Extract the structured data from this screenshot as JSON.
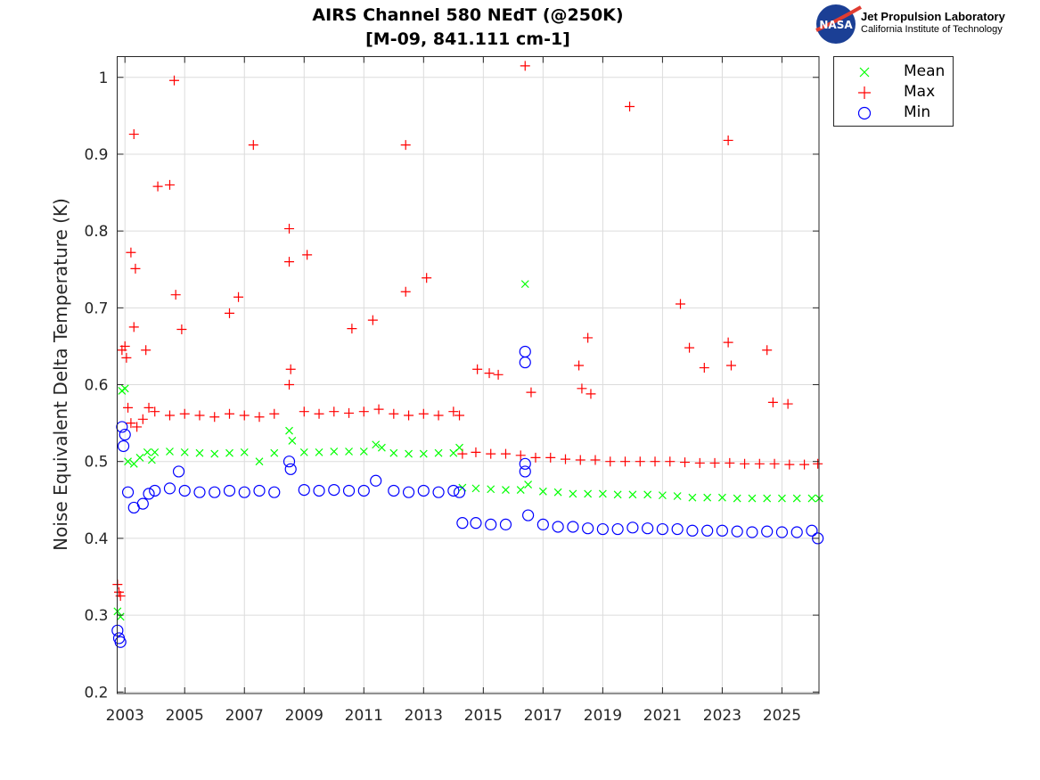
{
  "header": {
    "title_line1": "AIRS Channel 580 NEdT (@250K)",
    "title_line2": "[M-09, 841.111 cm-1]",
    "logo_text": "NASA",
    "org_name": "Jet Propulsion Laboratory",
    "org_subtitle": "California Institute of Technology"
  },
  "chart_data": {
    "type": "scatter",
    "title": "AIRS Channel 580 NEdT (@250K) [M-09, 841.111 cm-1]",
    "xlabel": "",
    "ylabel": "Noise Equivalent Delta Temperature (K)",
    "xlim": [
      2002.74,
      2026.24
    ],
    "ylim": [
      0.198,
      1.027
    ],
    "grid": true,
    "legend_position": "outside-top-right",
    "x_ticks": [
      "2003",
      "2005",
      "2007",
      "2009",
      "2011",
      "2013",
      "2015",
      "2017",
      "2019",
      "2021",
      "2023",
      "2025"
    ],
    "y_ticks": [
      "0.2",
      "0.3",
      "0.4",
      "0.5",
      "0.6",
      "0.7",
      "0.8",
      "0.9",
      "1"
    ],
    "series": [
      {
        "name": "Mean",
        "marker": "x",
        "color": "#00ff00",
        "points": [
          [
            2002.75,
            0.305
          ],
          [
            2002.85,
            0.298
          ],
          [
            2002.9,
            0.592
          ],
          [
            2003.0,
            0.595
          ],
          [
            2003.1,
            0.5
          ],
          [
            2003.3,
            0.497
          ],
          [
            2003.5,
            0.505
          ],
          [
            2003.75,
            0.512
          ],
          [
            2003.9,
            0.502
          ],
          [
            2004,
            0.512
          ],
          [
            2004.5,
            0.513
          ],
          [
            2005,
            0.512
          ],
          [
            2005.5,
            0.511
          ],
          [
            2006,
            0.51
          ],
          [
            2006.5,
            0.511
          ],
          [
            2007,
            0.512
          ],
          [
            2007.5,
            0.5
          ],
          [
            2008,
            0.511
          ],
          [
            2008.5,
            0.54
          ],
          [
            2008.6,
            0.527
          ],
          [
            2009,
            0.512
          ],
          [
            2009.5,
            0.512
          ],
          [
            2010,
            0.513
          ],
          [
            2010.5,
            0.513
          ],
          [
            2011,
            0.513
          ],
          [
            2011.4,
            0.522
          ],
          [
            2011.6,
            0.518
          ],
          [
            2012,
            0.511
          ],
          [
            2012.5,
            0.51
          ],
          [
            2013,
            0.51
          ],
          [
            2013.5,
            0.511
          ],
          [
            2014,
            0.511
          ],
          [
            2014.2,
            0.518
          ],
          [
            2014.3,
            0.466
          ],
          [
            2014.75,
            0.465
          ],
          [
            2015.25,
            0.464
          ],
          [
            2015.75,
            0.463
          ],
          [
            2016.25,
            0.463
          ],
          [
            2016.4,
            0.731
          ],
          [
            2016.5,
            0.47
          ],
          [
            2017,
            0.461
          ],
          [
            2017.5,
            0.46
          ],
          [
            2018,
            0.458
          ],
          [
            2018.5,
            0.458
          ],
          [
            2019,
            0.458
          ],
          [
            2019.5,
            0.457
          ],
          [
            2020,
            0.457
          ],
          [
            2020.5,
            0.457
          ],
          [
            2021,
            0.456
          ],
          [
            2021.5,
            0.455
          ],
          [
            2022,
            0.453
          ],
          [
            2022.5,
            0.453
          ],
          [
            2023,
            0.453
          ],
          [
            2023.5,
            0.452
          ],
          [
            2024,
            0.452
          ],
          [
            2024.5,
            0.452
          ],
          [
            2025,
            0.452
          ],
          [
            2025.5,
            0.452
          ],
          [
            2026,
            0.452
          ],
          [
            2026.25,
            0.452
          ]
        ]
      },
      {
        "name": "Max",
        "marker": "+",
        "color": "#ff0000",
        "points": [
          [
            2002.75,
            0.34
          ],
          [
            2002.8,
            0.33
          ],
          [
            2002.85,
            0.325
          ],
          [
            2002.9,
            0.645
          ],
          [
            2003.0,
            0.65
          ],
          [
            2003.05,
            0.635
          ],
          [
            2003.1,
            0.57
          ],
          [
            2003.2,
            0.55
          ],
          [
            2003.4,
            0.545
          ],
          [
            2003.6,
            0.555
          ],
          [
            2003.8,
            0.57
          ],
          [
            2004,
            0.565
          ],
          [
            2004.5,
            0.56
          ],
          [
            2005,
            0.562
          ],
          [
            2005.5,
            0.56
          ],
          [
            2006,
            0.558
          ],
          [
            2006.5,
            0.562
          ],
          [
            2007,
            0.56
          ],
          [
            2007.5,
            0.558
          ],
          [
            2008,
            0.562
          ],
          [
            2008.5,
            0.6
          ],
          [
            2008.55,
            0.62
          ],
          [
            2009,
            0.565
          ],
          [
            2009.5,
            0.562
          ],
          [
            2010,
            0.565
          ],
          [
            2010.5,
            0.563
          ],
          [
            2011,
            0.565
          ],
          [
            2011.5,
            0.568
          ],
          [
            2012,
            0.562
          ],
          [
            2012.5,
            0.56
          ],
          [
            2013,
            0.562
          ],
          [
            2013.5,
            0.56
          ],
          [
            2014,
            0.565
          ],
          [
            2014.2,
            0.56
          ],
          [
            2014.3,
            0.51
          ],
          [
            2014.75,
            0.512
          ],
          [
            2015.25,
            0.51
          ],
          [
            2015.75,
            0.51
          ],
          [
            2016.25,
            0.508
          ],
          [
            2016.75,
            0.505
          ],
          [
            2017.25,
            0.505
          ],
          [
            2017.75,
            0.503
          ],
          [
            2018.25,
            0.502
          ],
          [
            2018.75,
            0.502
          ],
          [
            2019.25,
            0.5
          ],
          [
            2019.75,
            0.5
          ],
          [
            2020.25,
            0.5
          ],
          [
            2020.75,
            0.5
          ],
          [
            2021.25,
            0.5
          ],
          [
            2021.75,
            0.499
          ],
          [
            2022.25,
            0.498
          ],
          [
            2022.75,
            0.498
          ],
          [
            2023.25,
            0.498
          ],
          [
            2023.75,
            0.497
          ],
          [
            2024.25,
            0.497
          ],
          [
            2024.75,
            0.497
          ],
          [
            2025.25,
            0.496
          ],
          [
            2025.75,
            0.496
          ],
          [
            2026.2,
            0.497
          ],
          [
            2003.3,
            0.926
          ],
          [
            2003.2,
            0.772
          ],
          [
            2003.35,
            0.751
          ],
          [
            2003.3,
            0.675
          ],
          [
            2003.7,
            0.645
          ],
          [
            2004.1,
            0.858
          ],
          [
            2004.5,
            0.86
          ],
          [
            2004.65,
            0.996
          ],
          [
            2004.7,
            0.717
          ],
          [
            2004.9,
            0.672
          ],
          [
            2006.5,
            0.693
          ],
          [
            2006.8,
            0.714
          ],
          [
            2007.3,
            0.912
          ],
          [
            2008.5,
            0.803
          ],
          [
            2008.5,
            0.76
          ],
          [
            2009.1,
            0.769
          ],
          [
            2010.6,
            0.673
          ],
          [
            2011.3,
            0.684
          ],
          [
            2012.4,
            0.912
          ],
          [
            2012.4,
            0.721
          ],
          [
            2013.1,
            0.739
          ],
          [
            2014.8,
            0.62
          ],
          [
            2015.2,
            0.615
          ],
          [
            2015.5,
            0.613
          ],
          [
            2016.4,
            1.015
          ],
          [
            2016.6,
            0.59
          ],
          [
            2018.2,
            0.625
          ],
          [
            2018.3,
            0.595
          ],
          [
            2018.5,
            0.661
          ],
          [
            2018.6,
            0.588
          ],
          [
            2019.9,
            0.962
          ],
          [
            2021.6,
            0.705
          ],
          [
            2021.9,
            0.648
          ],
          [
            2022.4,
            0.622
          ],
          [
            2023.2,
            0.918
          ],
          [
            2023.2,
            0.655
          ],
          [
            2023.3,
            0.625
          ],
          [
            2024.5,
            0.645
          ],
          [
            2024.7,
            0.577
          ],
          [
            2025.2,
            0.575
          ]
        ]
      },
      {
        "name": "Min",
        "marker": "o",
        "color": "#0000ff",
        "points": [
          [
            2002.75,
            0.28
          ],
          [
            2002.8,
            0.27
          ],
          [
            2002.85,
            0.265
          ],
          [
            2002.9,
            0.545
          ],
          [
            2003.0,
            0.535
          ],
          [
            2002.95,
            0.52
          ],
          [
            2003.1,
            0.46
          ],
          [
            2003.3,
            0.44
          ],
          [
            2003.6,
            0.445
          ],
          [
            2003.8,
            0.458
          ],
          [
            2004,
            0.462
          ],
          [
            2004.5,
            0.465
          ],
          [
            2004.8,
            0.487
          ],
          [
            2005,
            0.462
          ],
          [
            2005.5,
            0.46
          ],
          [
            2006,
            0.46
          ],
          [
            2006.5,
            0.462
          ],
          [
            2007,
            0.46
          ],
          [
            2007.5,
            0.462
          ],
          [
            2008,
            0.46
          ],
          [
            2008.5,
            0.5
          ],
          [
            2008.55,
            0.49
          ],
          [
            2009,
            0.463
          ],
          [
            2009.5,
            0.462
          ],
          [
            2010,
            0.463
          ],
          [
            2010.5,
            0.462
          ],
          [
            2011,
            0.462
          ],
          [
            2011.4,
            0.475
          ],
          [
            2012,
            0.462
          ],
          [
            2012.5,
            0.46
          ],
          [
            2013,
            0.462
          ],
          [
            2013.5,
            0.46
          ],
          [
            2014,
            0.462
          ],
          [
            2014.2,
            0.46
          ],
          [
            2014.3,
            0.42
          ],
          [
            2014.75,
            0.42
          ],
          [
            2015.25,
            0.418
          ],
          [
            2015.75,
            0.418
          ],
          [
            2016.4,
            0.643
          ],
          [
            2016.4,
            0.629
          ],
          [
            2016.4,
            0.497
          ],
          [
            2016.4,
            0.487
          ],
          [
            2016.5,
            0.43
          ],
          [
            2017,
            0.418
          ],
          [
            2017.5,
            0.415
          ],
          [
            2018,
            0.415
          ],
          [
            2018.5,
            0.413
          ],
          [
            2019,
            0.412
          ],
          [
            2019.5,
            0.412
          ],
          [
            2020,
            0.414
          ],
          [
            2020.5,
            0.413
          ],
          [
            2021,
            0.412
          ],
          [
            2021.5,
            0.412
          ],
          [
            2022,
            0.41
          ],
          [
            2022.5,
            0.41
          ],
          [
            2023,
            0.41
          ],
          [
            2023.5,
            0.409
          ],
          [
            2024,
            0.408
          ],
          [
            2024.5,
            0.409
          ],
          [
            2025,
            0.408
          ],
          [
            2025.5,
            0.408
          ],
          [
            2026,
            0.41
          ],
          [
            2026.2,
            0.4
          ]
        ]
      }
    ]
  }
}
